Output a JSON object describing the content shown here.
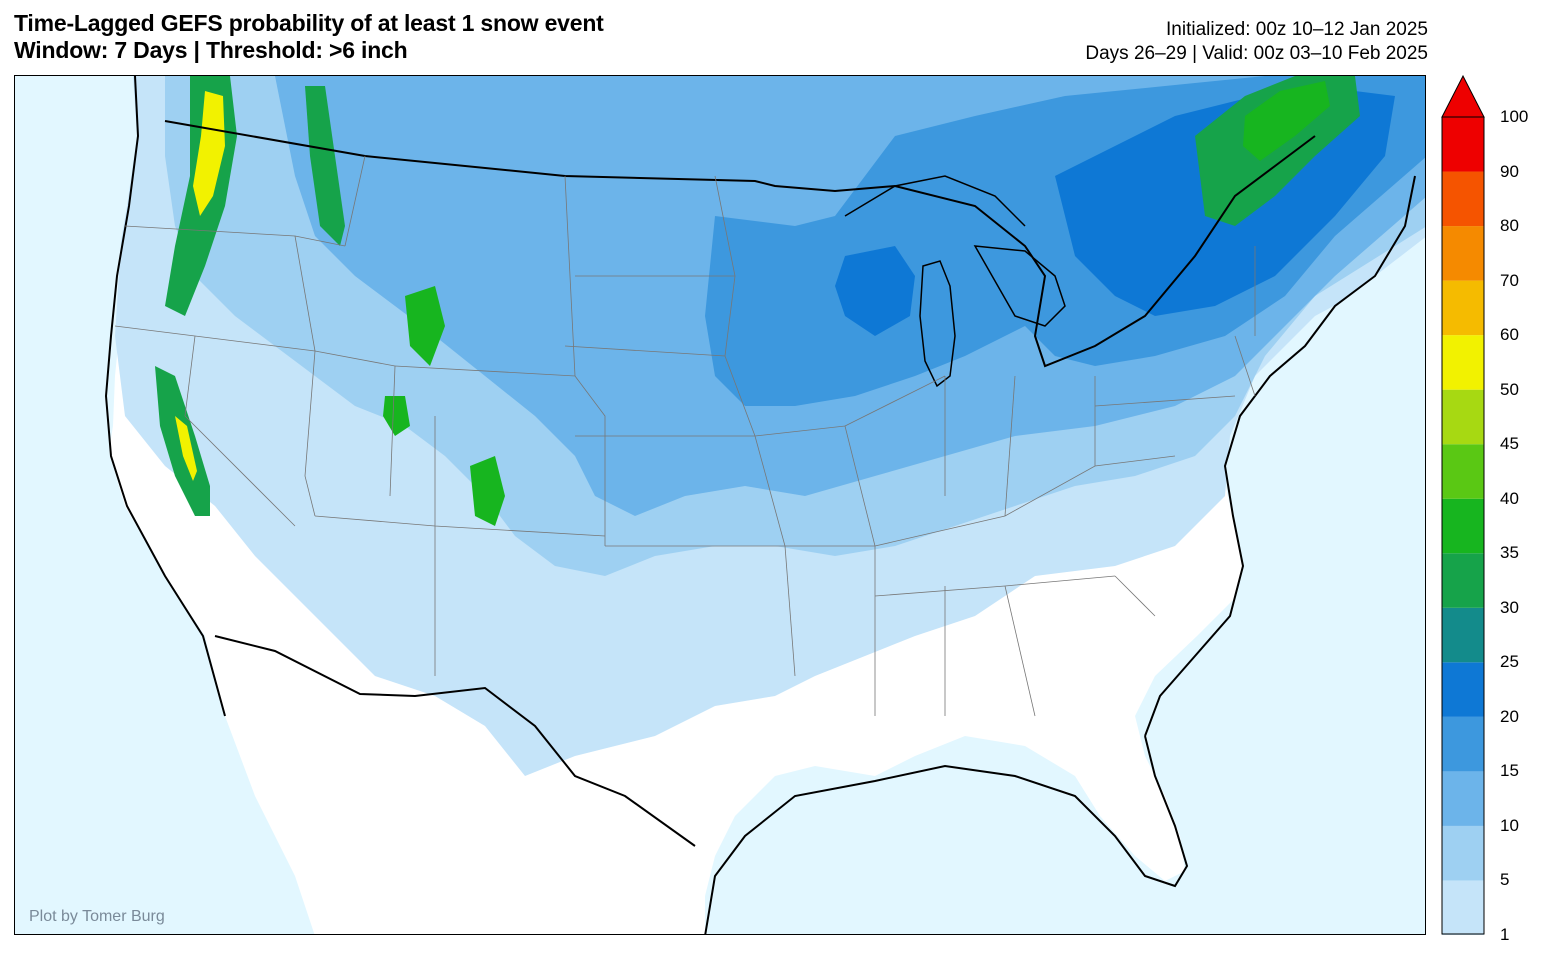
{
  "title": {
    "line1": "Time-Lagged GEFS probability of at least 1 snow event",
    "line2": "Window: 7 Days | Threshold: >6 inch"
  },
  "meta": {
    "initialized": "Initialized: 00z 10–12 Jan 2025",
    "valid": "Days 26–29 | Valid: 00z 03–10 Feb 2025"
  },
  "credit": "Plot by Tomer Burg",
  "colorbar": {
    "levels": [
      1,
      5,
      10,
      15,
      20,
      25,
      30,
      35,
      40,
      45,
      50,
      60,
      70,
      80,
      90,
      100
    ],
    "colors": [
      "#c5e4f9",
      "#9ed0f2",
      "#6cb4ea",
      "#3d98de",
      "#0e78d5",
      "#138b8b",
      "#16a34a",
      "#17b51f",
      "#5ac814",
      "#a7d912",
      "#f2f200",
      "#f5bb00",
      "#f58a00",
      "#f55400",
      "#ee0000"
    ],
    "extend_color": "#ee0000",
    "labels": [
      "100",
      "90",
      "80",
      "70",
      "60",
      "50",
      "45",
      "40",
      "35",
      "30",
      "25",
      "20",
      "15",
      "10",
      "5",
      "1"
    ]
  },
  "map": {
    "ocean_color": "#e2f7ff",
    "land_color": "#ffffff",
    "line_color": "#000000"
  }
}
